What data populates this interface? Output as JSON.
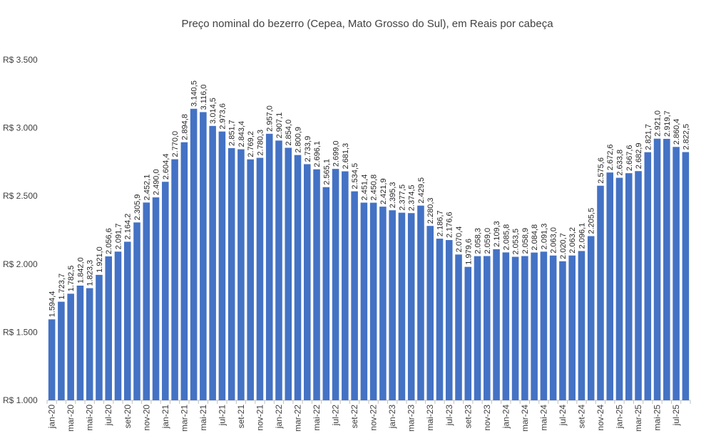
{
  "chart_data": {
    "type": "bar",
    "title": "Preço nominal do bezerro (Cepea, Mato Grosso do Sul), em Reais por cabeça",
    "categories": [
      "jan-20",
      null,
      "mar-20",
      null,
      "mai-20",
      null,
      "jul-20",
      null,
      "set-20",
      null,
      "nov-20",
      null,
      "jan-21",
      null,
      "mar-21",
      null,
      "mai-21",
      null,
      "jul-21",
      null,
      "set-21",
      null,
      "nov-21",
      null,
      "jan-22",
      null,
      "mar-22",
      null,
      "mai-22",
      null,
      "jul-22",
      null,
      "set-22",
      null,
      "nov-22",
      null,
      "jan-23",
      null,
      "mar-23",
      null,
      "mai-23",
      null,
      "jul-23",
      null,
      "set-23",
      null,
      "nov-23",
      null,
      "jan-24",
      null,
      "mar-24",
      null,
      "mai-24",
      null,
      "jul-24",
      null,
      "set-24",
      null,
      "nov-24",
      null,
      "jan-25",
      null,
      "mar-25",
      null,
      "mai-25",
      null,
      "jul-25",
      null
    ],
    "values": [
      1594.4,
      1723.7,
      1782.5,
      1842.0,
      1823.3,
      1921.0,
      2056.6,
      2091.7,
      2164.2,
      2305.9,
      2452.1,
      2490.0,
      2604.4,
      2770.0,
      2894.8,
      3140.5,
      3116.0,
      3014.5,
      2973.6,
      2851.7,
      2843.4,
      2769.2,
      2780.3,
      2957.0,
      2907.1,
      2854.0,
      2800.9,
      2733.9,
      2696.1,
      2565.1,
      2699.0,
      2681.3,
      2534.5,
      2451.4,
      2450.8,
      2421.9,
      2395.3,
      2377.5,
      2374.5,
      2429.5,
      2280.3,
      2186.7,
      2176.6,
      2070.4,
      1979.6,
      2058.3,
      2059.0,
      2109.3,
      2085.8,
      2053.5,
      2058.9,
      2084.8,
      2091.3,
      2063.0,
      2020.7,
      2063.2,
      2096.1,
      2205.5,
      2575.6,
      2672.6,
      2633.8,
      2667.6,
      2682.9,
      2821.7,
      2921.0,
      2919.7,
      2860.4,
      2822.5
    ],
    "value_labels": [
      "1.594,4",
      "1.723,7",
      "1.782,5",
      "1.842,0",
      "1.823,3",
      "1.921,0",
      "2.056,6",
      "2.091,7",
      "2.164,2",
      "2.305,9",
      "2.452,1",
      "2.490,0",
      "2.604,4",
      "2.770,0",
      "2.894,8",
      "3.140,5",
      "3.116,0",
      "3.014,5",
      "2.973,6",
      "2.851,7",
      "2.843,4",
      "2.769,2",
      "2.780,3",
      "2.957,0",
      "2.907,1",
      "2.854,0",
      "2.800,9",
      "2.733,9",
      "2.696,1",
      "2.565,1",
      "2.699,0",
      "2.681,3",
      "2.534,5",
      "2.451,4",
      "2.450,8",
      "2.421,9",
      "2.395,3",
      "2.377,5",
      "2.374,5",
      "2.429,5",
      "2.280,3",
      "2.186,7",
      "2.176,6",
      "2.070,4",
      "1.979,6",
      "2.058,3",
      "2.059,0",
      "2.109,3",
      "2.085,8",
      "2.053,5",
      "2.058,9",
      "2.084,8",
      "2.091,3",
      "2.063,0",
      "2.020,7",
      "2.063,2",
      "2.096,1",
      "2.205,5",
      "2.575,6",
      "2.672,6",
      "2.633,8",
      "2.667,6",
      "2.682,9",
      "2.821,7",
      "2.921,0",
      "2.919,7",
      "2.860,4",
      "2.822,5"
    ],
    "color": "#4472c4",
    "ylim": [
      1000,
      3500
    ],
    "yticks": [
      {
        "value": 1000,
        "label": "R$ 1.000"
      },
      {
        "value": 1500,
        "label": "R$ 1.500"
      },
      {
        "value": 2000,
        "label": "R$ 2.000"
      },
      {
        "value": 2500,
        "label": "R$ 2.500"
      },
      {
        "value": 3000,
        "label": "R$ 3.000"
      },
      {
        "value": 3500,
        "label": "R$ 3.500"
      }
    ],
    "grid": false
  }
}
